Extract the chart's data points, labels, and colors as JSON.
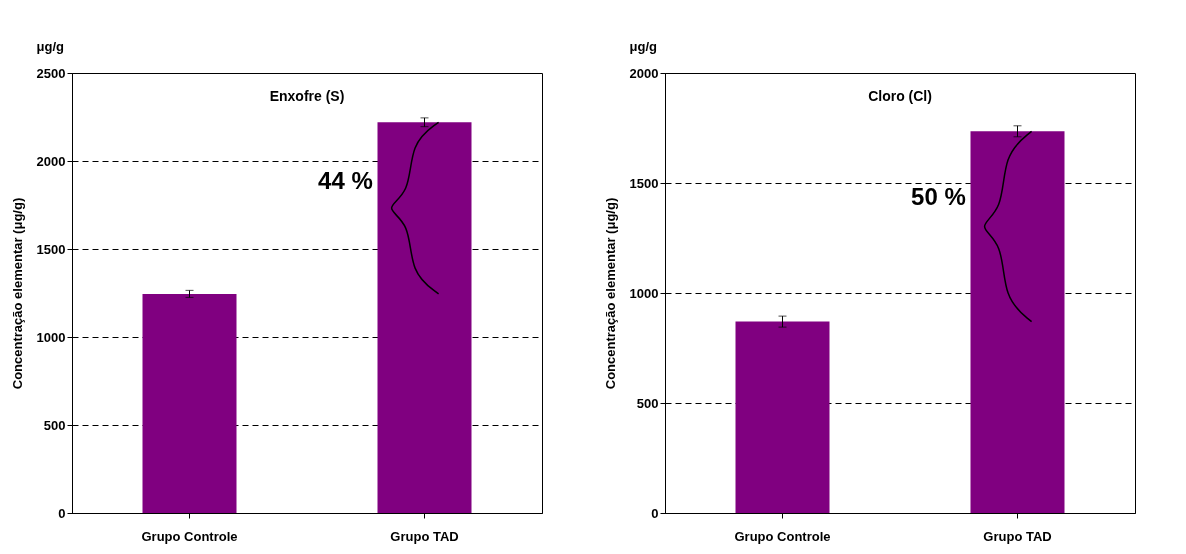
{
  "chart_data": [
    {
      "type": "bar",
      "title": "Enxofre (S)",
      "ylabel": "Concentração elementar (μg/g)",
      "categories": [
        "Grupo Controle",
        "Grupo TAD"
      ],
      "values": [
        1245,
        2220
      ],
      "errors": [
        20,
        25
      ],
      "colors": [
        "#800080",
        "#800080"
      ],
      "ylim": [
        0,
        2500
      ],
      "yticks": [
        0,
        500,
        1000,
        1500,
        2000,
        2500
      ],
      "grid": "y",
      "annotations": [
        "μg/g",
        "44 %"
      ]
    },
    {
      "type": "bar",
      "title": "Cloro (Cl)",
      "ylabel": "Concentração elementar (μg/g)",
      "categories": [
        "Grupo Controle",
        "Grupo TAD"
      ],
      "values": [
        870,
        1735
      ],
      "errors": [
        25,
        25
      ],
      "colors": [
        "#800080",
        "#800080"
      ],
      "ylim": [
        0,
        2000
      ],
      "yticks": [
        0,
        500,
        1000,
        1500,
        2000
      ],
      "grid": "y",
      "annotations": [
        "μg/g",
        "50 %"
      ]
    }
  ]
}
